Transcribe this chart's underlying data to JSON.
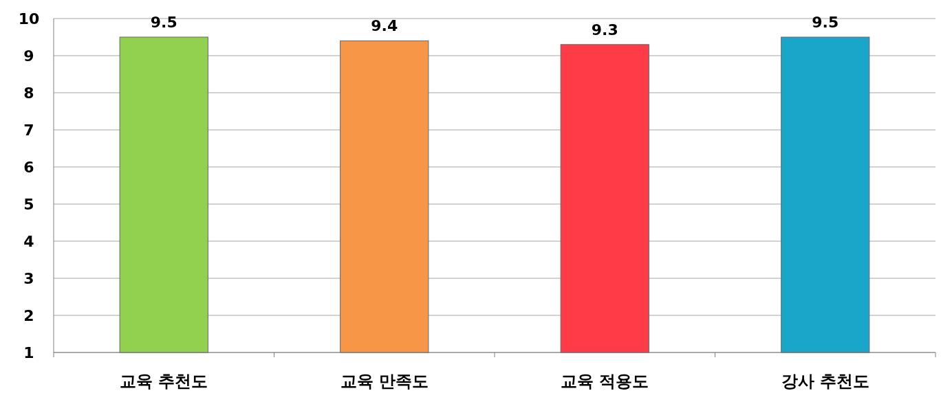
{
  "chart_data": {
    "type": "bar",
    "categories": [
      "교육 추천도",
      "교육 만족도",
      "교육 적용도",
      "강사 추천도"
    ],
    "values": [
      9.5,
      9.4,
      9.3,
      9.5
    ],
    "colors": [
      "#92d050",
      "#f79646",
      "#ff3b47",
      "#1aa6c8"
    ],
    "ylim": [
      1,
      10
    ],
    "yticks": [
      1,
      2,
      3,
      4,
      5,
      6,
      7,
      8,
      9,
      10
    ],
    "grid": "y",
    "data_labels": true
  }
}
